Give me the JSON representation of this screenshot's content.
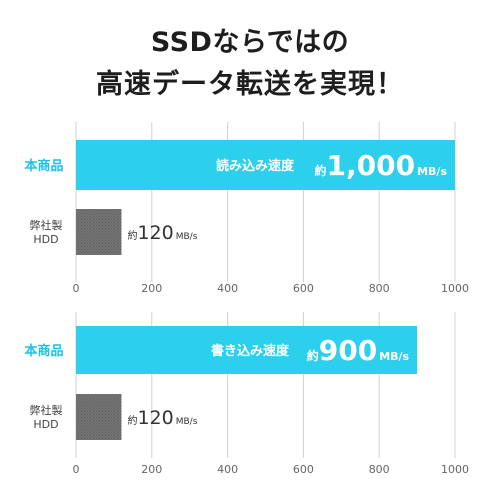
{
  "headline": {
    "line1": "SSDならではの",
    "line2": "高速データ転送を実現！"
  },
  "colors": {
    "product_bar": "#2cd0ec",
    "product_label": "#1cc3e6",
    "competitor_bar": "#6f6f6f",
    "grid": "#d0d0d0",
    "tick_text": "#666666"
  },
  "chart_data": [
    {
      "type": "bar",
      "orientation": "horizontal",
      "categories": [
        "本商品",
        "弊社製\nHDD"
      ],
      "series": [
        {
          "name": "",
          "values": [
            1000,
            120
          ]
        }
      ],
      "bar_caption": "読み込み速度",
      "value_labels": [
        {
          "prefix": "約",
          "number": "1,000",
          "unit": "MB/s"
        },
        {
          "prefix": "約",
          "number": "120",
          "unit": "MB/s"
        }
      ],
      "xlim": [
        0,
        1000
      ],
      "xticks": [
        "0",
        "200",
        "400",
        "600",
        "800",
        "1000"
      ],
      "xtick_values": [
        0,
        200,
        400,
        600,
        800,
        1000
      ],
      "grid": true
    },
    {
      "type": "bar",
      "orientation": "horizontal",
      "categories": [
        "本商品",
        "弊社製\nHDD"
      ],
      "series": [
        {
          "name": "",
          "values": [
            900,
            120
          ]
        }
      ],
      "bar_caption": "書き込み速度",
      "value_labels": [
        {
          "prefix": "約",
          "number": "900",
          "unit": "MB/s"
        },
        {
          "prefix": "約",
          "number": "120",
          "unit": "MB/s"
        }
      ],
      "xlim": [
        0,
        1000
      ],
      "xticks": [
        "0",
        "200",
        "400",
        "600",
        "800",
        "1000"
      ],
      "xtick_values": [
        0,
        200,
        400,
        600,
        800,
        1000
      ],
      "grid": true
    }
  ]
}
